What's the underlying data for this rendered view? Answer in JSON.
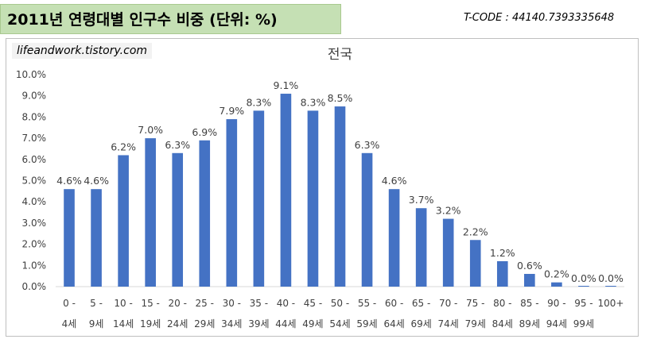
{
  "header": {
    "title": "2011년 연령대별 인구수 비중 (단위: %)",
    "tcode": "T-CODE : 44140.7393335648"
  },
  "source": "lifeandwork.tistory.com",
  "chart_data": {
    "type": "bar",
    "title": "전국",
    "categories": [
      "0 - 4세",
      "5 - 9세",
      "10 - 14세",
      "15 - 19세",
      "20 - 24세",
      "25 - 29세",
      "30 - 34세",
      "35 - 39세",
      "40 - 44세",
      "45 - 49세",
      "50 - 54세",
      "55 - 59세",
      "60 - 64세",
      "65 - 69세",
      "70 - 74세",
      "75 - 79세",
      "80 - 84세",
      "85 - 89세",
      "90 - 94세",
      "95 - 99세",
      "100+"
    ],
    "cat_top": [
      "0 -",
      "5 -",
      "10 -",
      "15 -",
      "20 -",
      "25 -",
      "30 -",
      "35 -",
      "40 -",
      "45 -",
      "50 -",
      "55 -",
      "60 -",
      "65 -",
      "70 -",
      "75 -",
      "80 -",
      "85 -",
      "90 -",
      "95 -",
      "100+"
    ],
    "cat_bottom": [
      "4세",
      "9세",
      "14세",
      "19세",
      "24세",
      "29세",
      "34세",
      "39세",
      "44세",
      "49세",
      "54세",
      "59세",
      "64세",
      "69세",
      "74세",
      "79세",
      "84세",
      "89세",
      "94세",
      "99세",
      ""
    ],
    "values": [
      4.6,
      4.6,
      6.2,
      7.0,
      6.3,
      6.9,
      7.9,
      8.3,
      9.1,
      8.3,
      8.5,
      6.3,
      4.6,
      3.7,
      3.2,
      2.2,
      1.2,
      0.6,
      0.2,
      0.0,
      0.0
    ],
    "data_labels": [
      "4.6%",
      "4.6%",
      "6.2%",
      "7.0%",
      "6.3%",
      "6.9%",
      "7.9%",
      "8.3%",
      "9.1%",
      "8.3%",
      "8.5%",
      "6.3%",
      "4.6%",
      "3.7%",
      "3.2%",
      "2.2%",
      "1.2%",
      "0.6%",
      "0.2%",
      "0.0%",
      "0.0%"
    ],
    "y_ticks": [
      "0.0%",
      "1.0%",
      "2.0%",
      "3.0%",
      "4.0%",
      "5.0%",
      "6.0%",
      "7.0%",
      "8.0%",
      "9.0%",
      "10.0%"
    ],
    "ylim": [
      0,
      10
    ],
    "bar_color": "#4472c4",
    "grid": false,
    "legend": "none"
  }
}
